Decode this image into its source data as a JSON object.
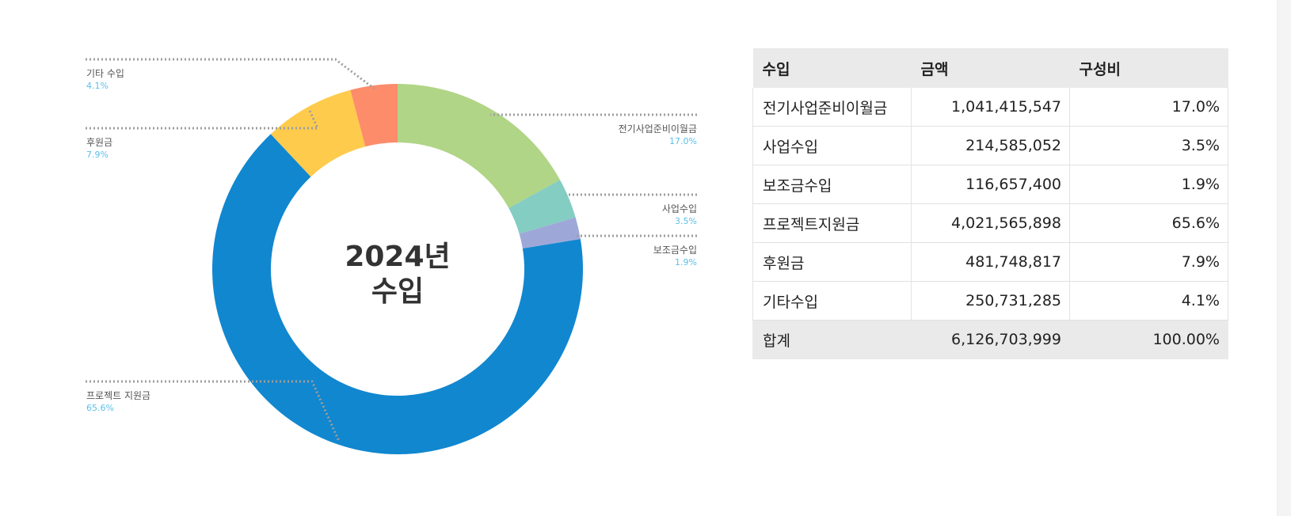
{
  "chart_data": {
    "type": "pie",
    "title": "2024년 수입",
    "center_label": [
      "2024년",
      "수입"
    ],
    "slices": [
      {
        "label": "전기사업준비이월금",
        "value": 17.0,
        "color": "#b0d586"
      },
      {
        "label": "사업수입",
        "value": 3.5,
        "color": "#84cdc2"
      },
      {
        "label": "보조금수입",
        "value": 1.9,
        "color": "#9ea8d8"
      },
      {
        "label": "프로젝트 지원금",
        "value": 65.6,
        "color": "#1187cf"
      },
      {
        "label": "후원금",
        "value": 7.9,
        "color": "#fecb4c"
      },
      {
        "label": "기타 수입",
        "value": 4.1,
        "color": "#fd8c6b"
      }
    ],
    "callouts": [
      {
        "slice": 5,
        "name": "기타 수입",
        "pct": "4.1%",
        "side": "left"
      },
      {
        "slice": 4,
        "name": "후원금",
        "pct": "7.9%",
        "side": "left"
      },
      {
        "slice": 3,
        "name": "프로젝트 지원금",
        "pct": "65.6%",
        "side": "left"
      },
      {
        "slice": 0,
        "name": "전기사업준비이월금",
        "pct": "17.0%",
        "side": "right"
      },
      {
        "slice": 1,
        "name": "사업수입",
        "pct": "3.5%",
        "side": "right"
      },
      {
        "slice": 2,
        "name": "보조금수입",
        "pct": "1.9%",
        "side": "right"
      }
    ],
    "percent_color": "#5bc0eb",
    "leader_color": "#9e9e9e"
  },
  "table": {
    "headers": [
      "수입",
      "금액",
      "구성비"
    ],
    "rows": [
      {
        "item": "전기사업준비이월금",
        "amount": "1,041,415,547",
        "ratio": "17.0%"
      },
      {
        "item": "사업수입",
        "amount": "214,585,052",
        "ratio": "3.5%"
      },
      {
        "item": "보조금수입",
        "amount": "116,657,400",
        "ratio": "1.9%"
      },
      {
        "item": "프로젝트지원금",
        "amount": "4,021,565,898",
        "ratio": "65.6%"
      },
      {
        "item": "후원금",
        "amount": "481,748,817",
        "ratio": "7.9%"
      },
      {
        "item": "기타수입",
        "amount": "250,731,285",
        "ratio": "4.1%"
      }
    ],
    "total": {
      "item": "합계",
      "amount": "6,126,703,999",
      "ratio": "100.00%"
    }
  }
}
